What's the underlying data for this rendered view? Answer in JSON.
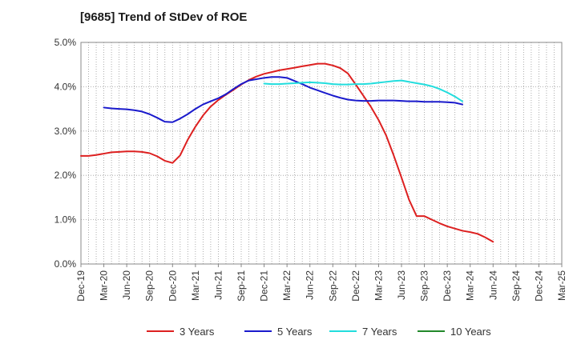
{
  "chart_data": {
    "type": "line",
    "title": "[9685]  Trend of StDev of ROE",
    "xlabel": "",
    "ylabel": "",
    "ylim": [
      0,
      5
    ],
    "y_ticks": [
      "0.0%",
      "1.0%",
      "2.0%",
      "3.0%",
      "4.0%",
      "5.0%"
    ],
    "y_tick_values": [
      0,
      1,
      2,
      3,
      4,
      5
    ],
    "x_ticks": [
      "Dec-19",
      "Mar-20",
      "Jun-20",
      "Sep-20",
      "Dec-20",
      "Mar-21",
      "Jun-21",
      "Sep-21",
      "Dec-21",
      "Mar-22",
      "Jun-22",
      "Sep-22",
      "Dec-22",
      "Mar-23",
      "Jun-23",
      "Sep-23",
      "Dec-23",
      "Mar-24",
      "Jun-24",
      "Sep-24",
      "Dec-24",
      "Mar-25"
    ],
    "grid": true,
    "legend_position": "bottom",
    "series": [
      {
        "name": "3 Years",
        "color": "#dd2020",
        "points": [
          [
            0,
            2.44
          ],
          [
            0.33,
            2.44
          ],
          [
            0.66,
            2.46
          ],
          [
            1,
            2.49
          ],
          [
            1.33,
            2.52
          ],
          [
            1.66,
            2.53
          ],
          [
            2,
            2.54
          ],
          [
            2.33,
            2.54
          ],
          [
            2.66,
            2.53
          ],
          [
            3,
            2.5
          ],
          [
            3.33,
            2.43
          ],
          [
            3.66,
            2.33
          ],
          [
            4,
            2.28
          ],
          [
            4.33,
            2.45
          ],
          [
            4.66,
            2.8
          ],
          [
            5,
            3.1
          ],
          [
            5.33,
            3.35
          ],
          [
            5.66,
            3.55
          ],
          [
            6,
            3.7
          ],
          [
            6.33,
            3.82
          ],
          [
            6.66,
            3.93
          ],
          [
            7,
            4.05
          ],
          [
            7.33,
            4.15
          ],
          [
            7.66,
            4.23
          ],
          [
            8,
            4.29
          ],
          [
            8.33,
            4.33
          ],
          [
            8.66,
            4.37
          ],
          [
            9,
            4.4
          ],
          [
            9.33,
            4.43
          ],
          [
            9.66,
            4.46
          ],
          [
            10,
            4.49
          ],
          [
            10.33,
            4.52
          ],
          [
            10.66,
            4.52
          ],
          [
            11,
            4.48
          ],
          [
            11.33,
            4.42
          ],
          [
            11.66,
            4.3
          ],
          [
            12,
            4.05
          ],
          [
            12.33,
            3.8
          ],
          [
            12.66,
            3.55
          ],
          [
            13,
            3.25
          ],
          [
            13.33,
            2.9
          ],
          [
            13.66,
            2.45
          ],
          [
            14,
            1.95
          ],
          [
            14.33,
            1.45
          ],
          [
            14.66,
            1.08
          ],
          [
            15,
            1.08
          ],
          [
            15.33,
            1.0
          ],
          [
            15.66,
            0.92
          ],
          [
            16,
            0.85
          ],
          [
            16.33,
            0.8
          ],
          [
            16.66,
            0.75
          ],
          [
            17,
            0.72
          ],
          [
            17.33,
            0.68
          ],
          [
            17.66,
            0.6
          ],
          [
            18,
            0.5
          ]
        ]
      },
      {
        "name": "5 Years",
        "color": "#1a1acc",
        "points": [
          [
            1,
            3.53
          ],
          [
            1.33,
            3.51
          ],
          [
            1.66,
            3.5
          ],
          [
            2,
            3.49
          ],
          [
            2.33,
            3.47
          ],
          [
            2.66,
            3.44
          ],
          [
            3,
            3.38
          ],
          [
            3.33,
            3.3
          ],
          [
            3.66,
            3.21
          ],
          [
            4,
            3.2
          ],
          [
            4.33,
            3.28
          ],
          [
            4.66,
            3.38
          ],
          [
            5,
            3.5
          ],
          [
            5.33,
            3.6
          ],
          [
            5.66,
            3.67
          ],
          [
            6,
            3.74
          ],
          [
            6.33,
            3.83
          ],
          [
            6.66,
            3.95
          ],
          [
            7,
            4.06
          ],
          [
            7.33,
            4.14
          ],
          [
            7.66,
            4.17
          ],
          [
            8,
            4.2
          ],
          [
            8.33,
            4.22
          ],
          [
            8.66,
            4.22
          ],
          [
            9,
            4.2
          ],
          [
            9.33,
            4.13
          ],
          [
            9.66,
            4.06
          ],
          [
            10,
            3.98
          ],
          [
            10.33,
            3.92
          ],
          [
            10.66,
            3.86
          ],
          [
            11,
            3.8
          ],
          [
            11.33,
            3.75
          ],
          [
            11.66,
            3.71
          ],
          [
            12,
            3.69
          ],
          [
            12.33,
            3.68
          ],
          [
            12.66,
            3.68
          ],
          [
            13,
            3.69
          ],
          [
            13.33,
            3.69
          ],
          [
            13.66,
            3.69
          ],
          [
            14,
            3.68
          ],
          [
            14.33,
            3.67
          ],
          [
            14.66,
            3.67
          ],
          [
            15,
            3.66
          ],
          [
            15.33,
            3.66
          ],
          [
            15.66,
            3.66
          ],
          [
            16,
            3.65
          ],
          [
            16.33,
            3.64
          ],
          [
            16.66,
            3.6
          ]
        ]
      },
      {
        "name": "7 Years",
        "color": "#22dddd",
        "points": [
          [
            8,
            4.07
          ],
          [
            8.33,
            4.06
          ],
          [
            8.66,
            4.06
          ],
          [
            9,
            4.07
          ],
          [
            9.33,
            4.08
          ],
          [
            9.66,
            4.09
          ],
          [
            10,
            4.1
          ],
          [
            10.33,
            4.09
          ],
          [
            10.66,
            4.08
          ],
          [
            11,
            4.06
          ],
          [
            11.33,
            4.05
          ],
          [
            11.66,
            4.05
          ],
          [
            12,
            4.06
          ],
          [
            12.33,
            4.06
          ],
          [
            12.66,
            4.07
          ],
          [
            13,
            4.09
          ],
          [
            13.33,
            4.11
          ],
          [
            13.66,
            4.13
          ],
          [
            14,
            4.14
          ],
          [
            14.33,
            4.11
          ],
          [
            14.66,
            4.08
          ],
          [
            15,
            4.05
          ],
          [
            15.33,
            4.01
          ],
          [
            15.66,
            3.95
          ],
          [
            16,
            3.87
          ],
          [
            16.33,
            3.78
          ],
          [
            16.66,
            3.67
          ]
        ]
      },
      {
        "name": "10 Years",
        "color": "#22882a",
        "points": []
      }
    ]
  }
}
